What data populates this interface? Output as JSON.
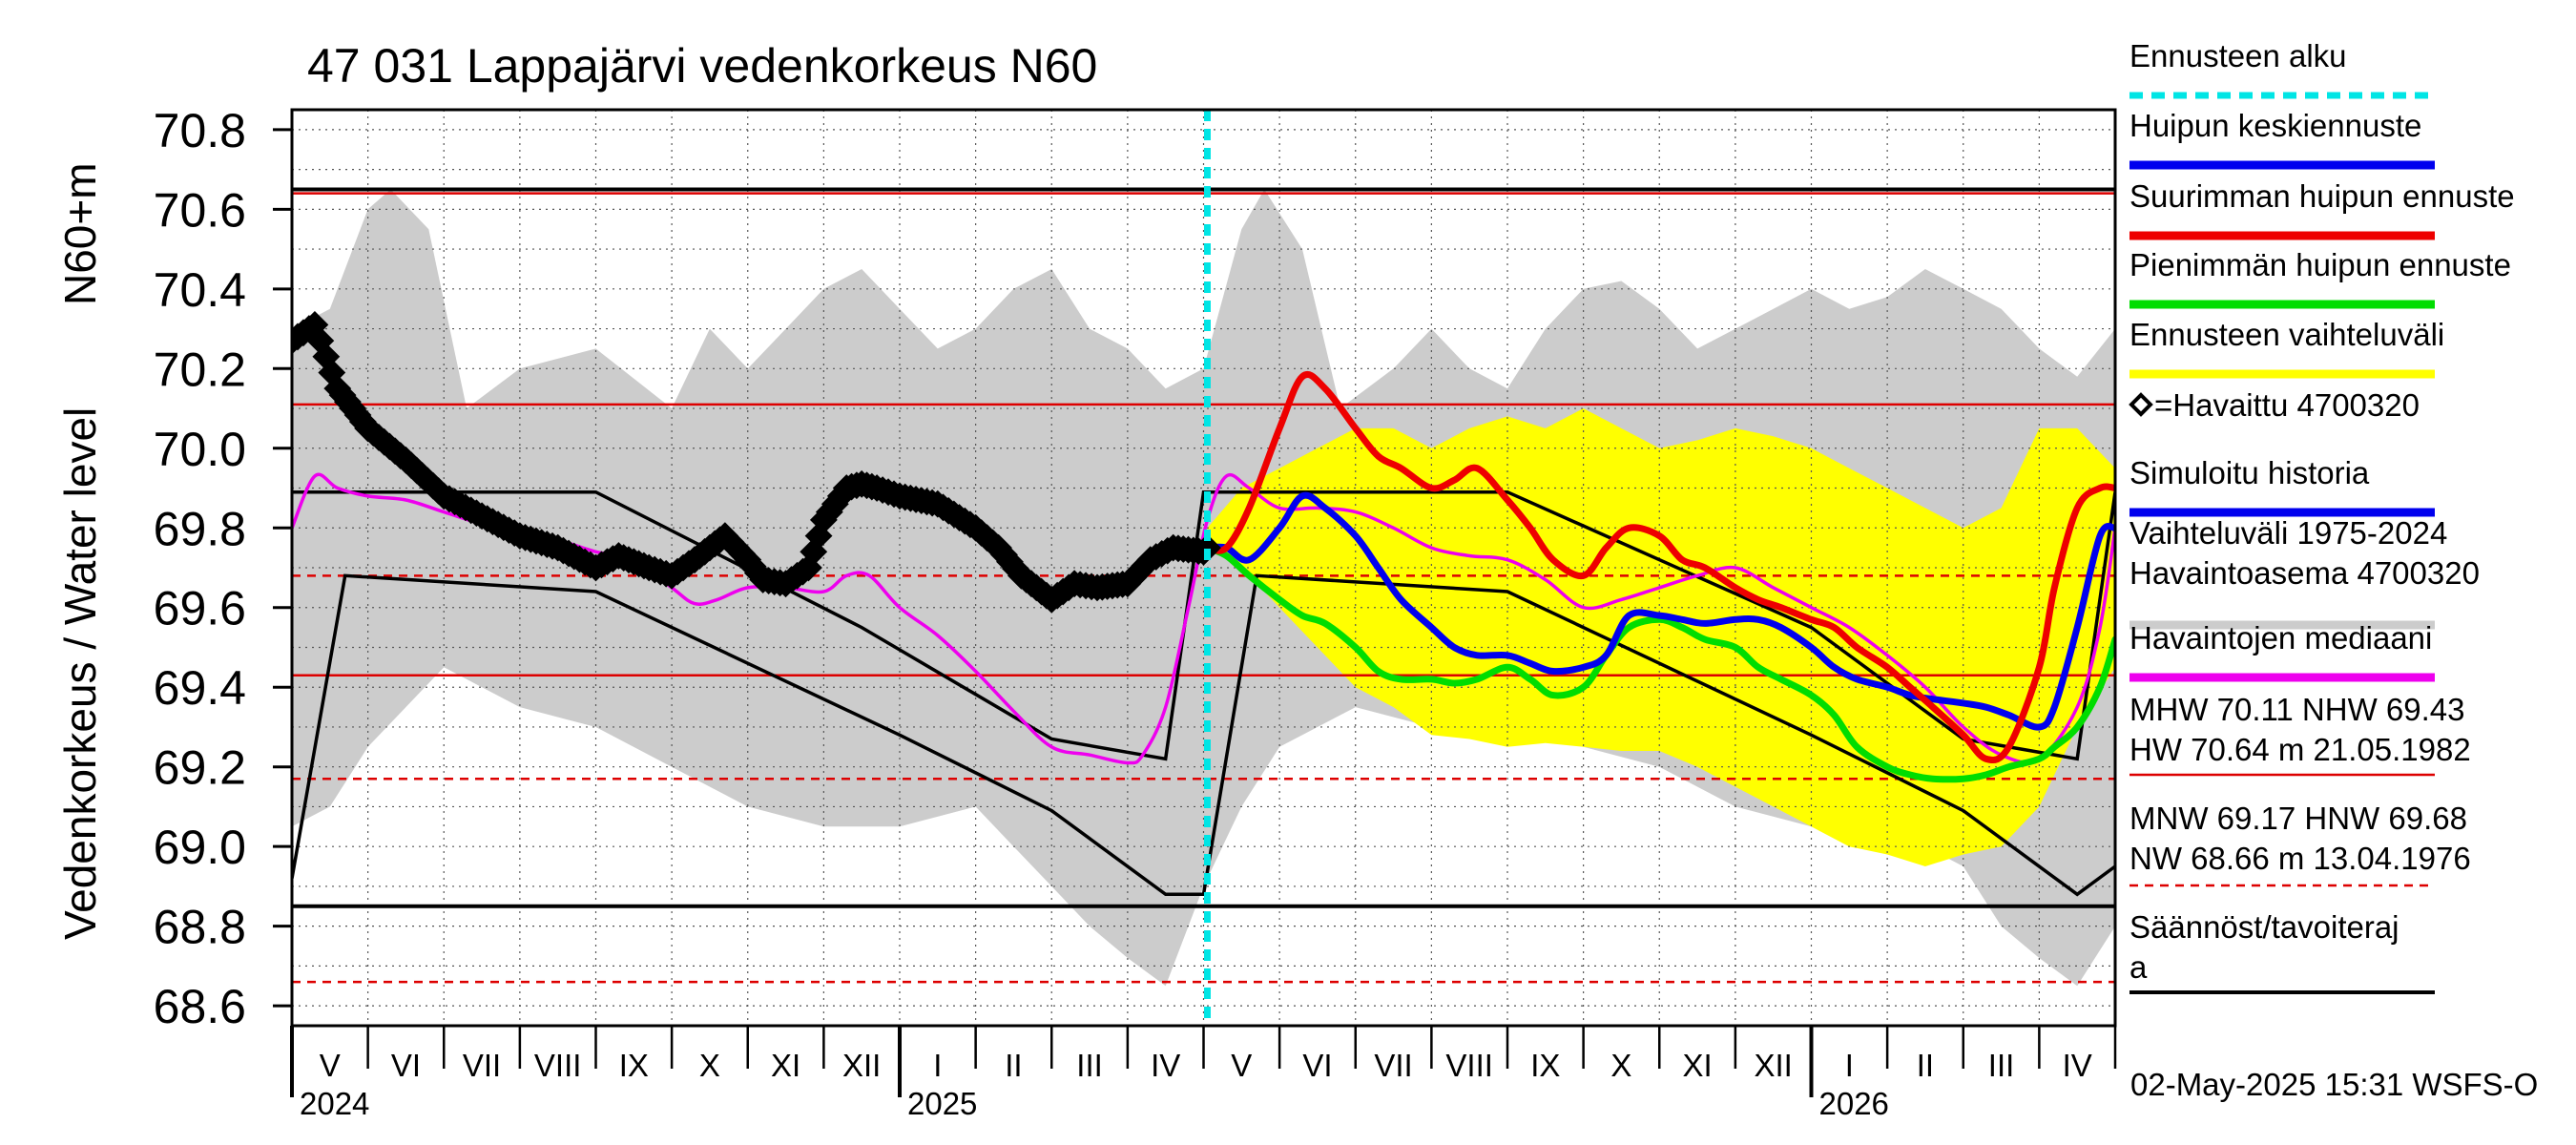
{
  "chart_data": {
    "type": "line",
    "title": "47 031 Lappajärvi vedenkorkeus N60",
    "ylabel": "Vedenkorkeus / Water level",
    "ylabel_unit": "N60+m",
    "ylim": [
      68.55,
      70.85
    ],
    "yticks": [
      "68.6",
      "68.8",
      "69.0",
      "69.2",
      "69.4",
      "69.6",
      "69.8",
      "70.0",
      "70.2",
      "70.4",
      "70.6",
      "70.8"
    ],
    "xlim": [
      0,
      24
    ],
    "month_labels": [
      "V",
      "VI",
      "VII",
      "VIII",
      "IX",
      "X",
      "XI",
      "XII",
      "I",
      "II",
      "III",
      "IV",
      "V",
      "VI",
      "VII",
      "VIII",
      "IX",
      "X",
      "XI",
      "XII",
      "I",
      "II",
      "III",
      "IV"
    ],
    "year_labels": [
      {
        "month": 0,
        "text": "2024"
      },
      {
        "month": 8,
        "text": "2025"
      },
      {
        "month": 20,
        "text": "2026"
      }
    ],
    "forecast_start_month": 12.05,
    "timestamp": "02-May-2025 15:31 WSFS-O",
    "reference_lines": {
      "solid_red": [
        70.64,
        70.11,
        69.43
      ],
      "dashed_red": [
        69.68,
        69.17,
        68.66
      ],
      "solid_black": [
        70.65,
        68.85
      ]
    },
    "legend": [
      {
        "label": "Ennusteen alku",
        "color": "#00e5e5",
        "style": "dashed"
      },
      {
        "label": "Huipun keskiennuste",
        "color": "#0000ee",
        "style": "solid"
      },
      {
        "label": "Suurimman huipun ennuste",
        "color": "#ee0000",
        "style": "solid"
      },
      {
        "label": "Pienimmän huipun ennuste",
        "color": "#00dd00",
        "style": "solid"
      },
      {
        "label": "Ennusteen vaihteluväli",
        "color": "#ffff00",
        "style": "solid"
      },
      {
        "label": "=Havaittu 4700320",
        "color": "#000000",
        "style": "marker"
      },
      {
        "label": "Simuloitu historia",
        "color": "#0000ee",
        "style": "solid"
      },
      {
        "label": "Vaihteluväli 1975-2024",
        "color": "#cccccc",
        "style": "solid"
      },
      {
        "label": " Havaintoasema 4700320",
        "color": "#cccccc",
        "style": "none"
      },
      {
        "label": "Havaintojen mediaani",
        "color": "#ee00ee",
        "style": "solid"
      }
    ],
    "stats": {
      "line1": "MHW  70.11 NHW  69.43",
      "line2": "HW  70.64 m 21.05.1982",
      "line3": "MNW  69.17 HNW  69.68",
      "line4": "NW  68.66 m 13.04.1976"
    },
    "regulation_label_1": "Säännöst/tavoiteraj",
    "regulation_label_2": "a",
    "series": [
      {
        "name": "Vaihteluväli 1975-2024 upper",
        "color": "#cccccc",
        "x": [
          0,
          0.5,
          1,
          1.3,
          1.8,
          2.3,
          3,
          4,
          5,
          5.5,
          6,
          6.5,
          7,
          7.5,
          8,
          8.5,
          9,
          9.5,
          10,
          10.5,
          11,
          11.5,
          12,
          12.5,
          12.8,
          13.3,
          13.8,
          14.5,
          15,
          15.5,
          16,
          16.5,
          17,
          17.5,
          18,
          18.5,
          19,
          19.5,
          20,
          20.5,
          21,
          21.5,
          22,
          22.5,
          23,
          23.5,
          24
        ],
        "values": [
          70.3,
          70.35,
          70.6,
          70.65,
          70.55,
          70.1,
          70.2,
          70.25,
          70.1,
          70.3,
          70.2,
          70.3,
          70.4,
          70.45,
          70.35,
          70.25,
          70.3,
          70.4,
          70.45,
          70.3,
          70.25,
          70.15,
          70.2,
          70.55,
          70.65,
          70.5,
          70.1,
          70.2,
          70.3,
          70.2,
          70.15,
          70.3,
          70.4,
          70.42,
          70.35,
          70.25,
          70.3,
          70.35,
          70.4,
          70.35,
          70.38,
          70.45,
          70.4,
          70.35,
          70.25,
          70.18,
          70.3
        ]
      },
      {
        "name": "Vaihteluväli 1975-2024 lower",
        "color": "#cccccc",
        "x": [
          0,
          0.5,
          1,
          1.5,
          2,
          2.5,
          3,
          4,
          5,
          6,
          7,
          8,
          9,
          9.5,
          10,
          10.5,
          11,
          11.5,
          12,
          12.5,
          13,
          14,
          15,
          16,
          17,
          18,
          19,
          20,
          21,
          22,
          22.5,
          23,
          23.5,
          24
        ],
        "values": [
          69.05,
          69.1,
          69.25,
          69.35,
          69.45,
          69.4,
          69.35,
          69.3,
          69.2,
          69.1,
          69.05,
          69.05,
          69.1,
          69.0,
          68.9,
          68.8,
          68.72,
          68.65,
          68.9,
          69.1,
          69.25,
          69.35,
          69.3,
          69.3,
          69.25,
          69.2,
          69.1,
          69.05,
          69.05,
          68.95,
          68.8,
          68.72,
          68.65,
          68.8
        ]
      },
      {
        "name": "Ennusteen vaihteluväli upper",
        "color": "#ffff00",
        "x": [
          12.05,
          12.5,
          13,
          13.5,
          14,
          14.5,
          15,
          15.5,
          16,
          16.5,
          17,
          17.5,
          18,
          18.5,
          19,
          19.5,
          20,
          20.5,
          21,
          21.5,
          22,
          22.5,
          23,
          23.5,
          24
        ],
        "values": [
          69.8,
          69.9,
          69.95,
          70.0,
          70.05,
          70.05,
          70.0,
          70.05,
          70.08,
          70.05,
          70.1,
          70.05,
          70.0,
          70.02,
          70.05,
          70.03,
          70.0,
          69.95,
          69.9,
          69.85,
          69.8,
          69.85,
          70.05,
          70.05,
          69.95
        ]
      },
      {
        "name": "Ennusteen vaihteluväli lower",
        "color": "#ffff00",
        "x": [
          12.05,
          12.5,
          13,
          13.5,
          14,
          14.5,
          15,
          15.5,
          16,
          16.5,
          17,
          17.5,
          18,
          18.5,
          19,
          19.5,
          20,
          20.5,
          21,
          21.5,
          22,
          22.5,
          23,
          23.5,
          24
        ],
        "values": [
          69.75,
          69.7,
          69.6,
          69.5,
          69.4,
          69.35,
          69.28,
          69.27,
          69.25,
          69.26,
          69.25,
          69.24,
          69.24,
          69.2,
          69.15,
          69.1,
          69.05,
          69.0,
          68.98,
          68.95,
          68.98,
          69.0,
          69.1,
          69.3,
          69.45
        ]
      },
      {
        "name": "Havaittu 4700320",
        "color": "#000000",
        "x": [
          0,
          0.3,
          0.6,
          1,
          1.5,
          2,
          2.5,
          3,
          3.5,
          4,
          4.3,
          4.7,
          5,
          5.3,
          5.7,
          6,
          6.2,
          6.5,
          6.8,
          7,
          7.3,
          7.5,
          7.7,
          8,
          8.5,
          9,
          9.3,
          9.6,
          10,
          10.3,
          10.6,
          11,
          11.3,
          11.6,
          12,
          12.05
        ],
        "values": [
          70.27,
          70.31,
          70.15,
          70.05,
          69.97,
          69.88,
          69.83,
          69.78,
          69.75,
          69.7,
          69.73,
          69.7,
          69.68,
          69.72,
          69.78,
          69.72,
          69.67,
          69.66,
          69.7,
          69.82,
          69.9,
          69.91,
          69.9,
          69.88,
          69.86,
          69.8,
          69.75,
          69.68,
          69.62,
          69.66,
          69.65,
          69.66,
          69.72,
          69.75,
          69.74,
          69.75
        ]
      },
      {
        "name": "Havaintojen mediaani",
        "color": "#ee00ee",
        "x": [
          0,
          0.3,
          0.6,
          1,
          1.5,
          2,
          2.5,
          3,
          3.5,
          4,
          4.5,
          5,
          5.3,
          5.6,
          6,
          6.5,
          7,
          7.3,
          7.6,
          8,
          8.5,
          9,
          9.5,
          10,
          10.5,
          11,
          11.2,
          11.5,
          11.8,
          12.05,
          12.3,
          12.6,
          13,
          13.5,
          14,
          14.5,
          15,
          15.5,
          16,
          16.5,
          17,
          17.5,
          18,
          18.5,
          19,
          19.5,
          20,
          20.5,
          21,
          21.5,
          22,
          22.5,
          23,
          23.5,
          23.8,
          24
        ],
        "values": [
          69.8,
          69.93,
          69.9,
          69.88,
          69.87,
          69.84,
          69.81,
          69.79,
          69.77,
          69.74,
          69.72,
          69.65,
          69.61,
          69.62,
          69.65,
          69.65,
          69.64,
          69.68,
          69.68,
          69.6,
          69.53,
          69.44,
          69.34,
          69.25,
          69.23,
          69.21,
          69.23,
          69.35,
          69.6,
          69.82,
          69.93,
          69.9,
          69.85,
          69.85,
          69.84,
          69.8,
          69.75,
          69.73,
          69.72,
          69.67,
          69.6,
          69.62,
          69.65,
          69.68,
          69.7,
          69.65,
          69.6,
          69.55,
          69.48,
          69.4,
          69.3,
          69.23,
          69.22,
          69.35,
          69.55,
          69.8
        ]
      },
      {
        "name": "Suurimman huipun ennuste",
        "color": "#ee0000",
        "x": [
          12.05,
          12.3,
          12.6,
          13,
          13.3,
          13.6,
          14,
          14.3,
          14.6,
          15,
          15.3,
          15.6,
          16,
          16.3,
          16.6,
          17,
          17.3,
          17.6,
          18,
          18.3,
          18.6,
          19,
          19.3,
          19.6,
          20,
          20.3,
          20.6,
          21,
          21.3,
          21.6,
          22,
          22.3,
          22.6,
          23,
          23.2,
          23.5,
          23.8,
          24
        ],
        "values": [
          69.75,
          69.75,
          69.85,
          70.05,
          70.18,
          70.15,
          70.05,
          69.98,
          69.95,
          69.9,
          69.92,
          69.95,
          69.87,
          69.8,
          69.72,
          69.68,
          69.75,
          69.8,
          69.78,
          69.72,
          69.7,
          69.65,
          69.62,
          69.6,
          69.57,
          69.55,
          69.5,
          69.45,
          69.4,
          69.35,
          69.28,
          69.22,
          69.25,
          69.45,
          69.65,
          69.85,
          69.9,
          69.9
        ]
      },
      {
        "name": "Huipun keskiennuste",
        "color": "#0000ee",
        "x": [
          12.05,
          12.3,
          12.6,
          13,
          13.3,
          13.6,
          14,
          14.3,
          14.6,
          15,
          15.3,
          15.6,
          16,
          16.3,
          16.6,
          17,
          17.3,
          17.6,
          18,
          18.3,
          18.6,
          19,
          19.3,
          19.6,
          20,
          20.3,
          20.6,
          21,
          21.3,
          21.6,
          22,
          22.3,
          22.6,
          23,
          23.2,
          23.5,
          23.8,
          24
        ],
        "values": [
          69.75,
          69.75,
          69.72,
          69.8,
          69.88,
          69.85,
          69.78,
          69.7,
          69.62,
          69.55,
          69.5,
          69.48,
          69.48,
          69.46,
          69.44,
          69.45,
          69.48,
          69.58,
          69.58,
          69.57,
          69.56,
          69.57,
          69.57,
          69.55,
          69.5,
          69.45,
          69.42,
          69.4,
          69.38,
          69.37,
          69.36,
          69.35,
          69.33,
          69.3,
          69.35,
          69.55,
          69.78,
          69.8
        ]
      },
      {
        "name": "Pienimmän huipun ennuste",
        "color": "#00dd00",
        "x": [
          12.05,
          12.3,
          12.6,
          13,
          13.3,
          13.6,
          14,
          14.3,
          14.6,
          15,
          15.3,
          15.6,
          16,
          16.3,
          16.6,
          17,
          17.3,
          17.6,
          18,
          18.3,
          18.6,
          19,
          19.3,
          19.6,
          20,
          20.3,
          20.6,
          21,
          21.3,
          21.6,
          22,
          22.3,
          22.6,
          23,
          23.2,
          23.5,
          23.8,
          24
        ],
        "values": [
          69.75,
          69.73,
          69.68,
          69.62,
          69.58,
          69.56,
          69.5,
          69.44,
          69.42,
          69.42,
          69.41,
          69.42,
          69.45,
          69.42,
          69.38,
          69.4,
          69.48,
          69.55,
          69.57,
          69.55,
          69.52,
          69.5,
          69.45,
          69.42,
          69.38,
          69.33,
          69.25,
          69.2,
          69.18,
          69.17,
          69.17,
          69.18,
          69.2,
          69.22,
          69.25,
          69.3,
          69.4,
          69.52
        ]
      },
      {
        "name": "Säännöst/tavoiteraja upper",
        "color": "#000000",
        "x": [
          0,
          4,
          7.5,
          10,
          11.5,
          12,
          16,
          20,
          22,
          23.5,
          24
        ],
        "values": [
          69.89,
          69.89,
          69.55,
          69.27,
          69.22,
          69.89,
          69.89,
          69.55,
          69.27,
          69.22,
          69.89
        ]
      },
      {
        "name": "Säännöst/tavoiteraja lower",
        "color": "#000000",
        "x": [
          0,
          0.7,
          4,
          8,
          10,
          11.5,
          12,
          12.7,
          16,
          20,
          22,
          23.5,
          24
        ],
        "values": [
          68.92,
          69.68,
          69.64,
          69.28,
          69.09,
          68.88,
          68.88,
          69.68,
          69.64,
          69.28,
          69.09,
          68.88,
          68.95
        ]
      }
    ]
  }
}
